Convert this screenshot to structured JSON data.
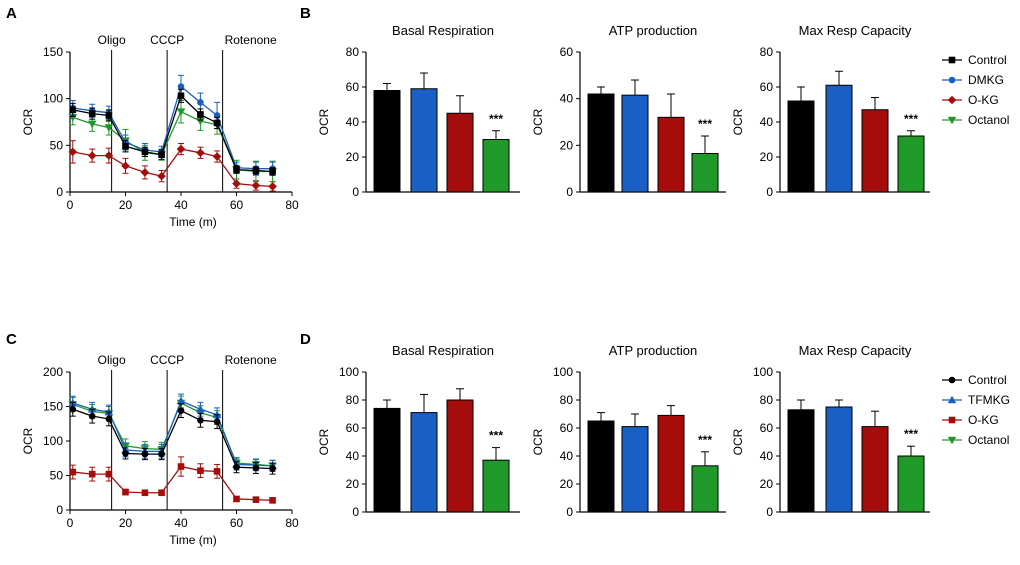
{
  "colors": {
    "Control": "#000000",
    "DMKG": "#1a5fc4",
    "TFMKG": "#1a5fc4",
    "O-KG": "#a50d0d",
    "Octanol": "#1f9a2a",
    "vline": "#000000"
  },
  "panel_labels": [
    "A",
    "B",
    "C",
    "D"
  ],
  "chart_data": [
    {
      "id": "A",
      "type": "line",
      "xlabel": "Time (m)",
      "ylabel": "OCR",
      "xlim": [
        0,
        80
      ],
      "ylim": [
        0,
        150
      ],
      "xticks": [
        0,
        20,
        40,
        60,
        80
      ],
      "yticks": [
        0,
        50,
        100,
        150
      ],
      "annotations": [
        {
          "text": "Oligo",
          "x": 15
        },
        {
          "text": "CCCP",
          "x": 35
        },
        {
          "text": "Rotenone",
          "x": 55
        }
      ],
      "x": [
        1,
        8,
        14,
        20,
        27,
        33,
        40,
        47,
        53,
        60,
        67,
        73
      ],
      "series": [
        {
          "name": "Control",
          "marker": "square",
          "values": [
            88,
            84,
            82,
            49,
            43,
            40,
            103,
            83,
            74,
            24,
            23,
            22
          ],
          "errors": [
            7,
            6,
            6,
            6,
            5,
            5,
            7,
            6,
            6,
            4,
            4,
            4
          ]
        },
        {
          "name": "DMKG",
          "marker": "circle",
          "values": [
            90,
            87,
            85,
            53,
            45,
            43,
            113,
            96,
            82,
            26,
            25,
            25
          ],
          "errors": [
            8,
            7,
            7,
            8,
            7,
            6,
            12,
            10,
            14,
            6,
            7,
            7
          ]
        },
        {
          "name": "O-KG",
          "marker": "diamond",
          "values": [
            43,
            39,
            39,
            28,
            21,
            17,
            46,
            42,
            38,
            9,
            7,
            6
          ],
          "errors": [
            12,
            7,
            8,
            8,
            7,
            6,
            6,
            6,
            6,
            5,
            5,
            5
          ]
        },
        {
          "name": "Octanol",
          "marker": "triangle-down",
          "values": [
            80,
            73,
            69,
            55,
            42,
            40,
            86,
            76,
            72,
            24,
            22,
            22
          ],
          "errors": [
            8,
            8,
            8,
            12,
            8,
            6,
            12,
            10,
            10,
            10,
            11,
            11
          ]
        }
      ]
    },
    {
      "id": "B1",
      "type": "bar",
      "title": "Basal Respiration",
      "ylabel": "OCR",
      "ylim": [
        0,
        80
      ],
      "yticks": [
        0,
        20,
        40,
        60,
        80
      ],
      "categories": [
        "Control",
        "DMKG",
        "O-KG",
        "Octanol"
      ],
      "values": [
        58,
        59,
        45,
        30
      ],
      "errors": [
        4,
        9,
        10,
        5
      ],
      "significance": [
        "",
        "",
        "",
        "***"
      ]
    },
    {
      "id": "B2",
      "type": "bar",
      "title": "ATP production",
      "ylabel": "OCR",
      "ylim": [
        0,
        60
      ],
      "yticks": [
        0,
        20,
        40,
        60
      ],
      "categories": [
        "Control",
        "DMKG",
        "O-KG",
        "Octanol"
      ],
      "values": [
        42,
        41.5,
        32,
        16.5
      ],
      "errors": [
        3,
        6.5,
        10,
        7.5
      ],
      "significance": [
        "",
        "",
        "",
        "***"
      ]
    },
    {
      "id": "B3",
      "type": "bar",
      "title": "Max Resp Capacity",
      "ylabel": "OCR",
      "ylim": [
        0,
        80
      ],
      "yticks": [
        0,
        20,
        40,
        60,
        80
      ],
      "categories": [
        "Control",
        "DMKG",
        "O-KG",
        "Octanol"
      ],
      "values": [
        52,
        61,
        47,
        32
      ],
      "errors": [
        8,
        8,
        7,
        3
      ],
      "significance": [
        "",
        "",
        "",
        "***"
      ],
      "legend": [
        {
          "name": "Control",
          "marker": "square"
        },
        {
          "name": "DMKG",
          "marker": "circle"
        },
        {
          "name": "O-KG",
          "marker": "diamond"
        },
        {
          "name": "Octanol",
          "marker": "triangle-down"
        }
      ]
    },
    {
      "id": "C",
      "type": "line",
      "xlabel": "Time (m)",
      "ylabel": "OCR",
      "xlim": [
        0,
        80
      ],
      "ylim": [
        0,
        200
      ],
      "xticks": [
        0,
        20,
        40,
        60,
        80
      ],
      "yticks": [
        0,
        50,
        100,
        150,
        200
      ],
      "annotations": [
        {
          "text": "Oligo",
          "x": 15
        },
        {
          "text": "CCCP",
          "x": 35
        },
        {
          "text": "Rotenone",
          "x": 55
        }
      ],
      "x": [
        1,
        8,
        14,
        20,
        27,
        33,
        40,
        47,
        53,
        60,
        67,
        73
      ],
      "series": [
        {
          "name": "Control",
          "marker": "circle",
          "values": [
            146,
            136,
            132,
            82,
            81,
            81,
            144,
            130,
            128,
            62,
            61,
            60
          ],
          "errors": [
            10,
            10,
            10,
            8,
            8,
            8,
            10,
            10,
            10,
            8,
            8,
            8
          ]
        },
        {
          "name": "TFMKG",
          "marker": "triangle-up",
          "values": [
            155,
            146,
            142,
            87,
            85,
            85,
            158,
            146,
            138,
            66,
            65,
            64
          ],
          "errors": [
            10,
            10,
            10,
            10,
            10,
            10,
            10,
            10,
            10,
            8,
            8,
            8
          ]
        },
        {
          "name": "O-KG",
          "marker": "square",
          "values": [
            55,
            52,
            52,
            26,
            25,
            25,
            63,
            57,
            56,
            16,
            15,
            14
          ],
          "errors": [
            10,
            10,
            10,
            4,
            4,
            4,
            14,
            10,
            10,
            3,
            3,
            3
          ]
        },
        {
          "name": "Octanol",
          "marker": "triangle-down",
          "values": [
            153,
            143,
            140,
            93,
            89,
            88,
            155,
            141,
            134,
            68,
            66,
            64
          ],
          "errors": [
            10,
            10,
            10,
            10,
            10,
            10,
            10,
            10,
            10,
            8,
            8,
            8
          ]
        }
      ]
    },
    {
      "id": "D1",
      "type": "bar",
      "title": "Basal Respiration",
      "ylabel": "OCR",
      "ylim": [
        0,
        100
      ],
      "yticks": [
        0,
        20,
        40,
        60,
        80,
        100
      ],
      "categories": [
        "Control",
        "TFMKG",
        "O-KG",
        "Octanol"
      ],
      "values": [
        74,
        71,
        80,
        37
      ],
      "errors": [
        6,
        13,
        8,
        9
      ],
      "significance": [
        "",
        "",
        "",
        "***"
      ]
    },
    {
      "id": "D2",
      "type": "bar",
      "title": "ATP production",
      "ylabel": "OCR",
      "ylim": [
        0,
        100
      ],
      "yticks": [
        0,
        20,
        40,
        60,
        80,
        100
      ],
      "categories": [
        "Control",
        "TFMKG",
        "O-KG",
        "Octanol"
      ],
      "values": [
        65,
        61,
        69,
        33
      ],
      "errors": [
        6,
        9,
        7,
        10
      ],
      "significance": [
        "",
        "",
        "",
        "***"
      ]
    },
    {
      "id": "D3",
      "type": "bar",
      "title": "Max Resp Capacity",
      "ylabel": "OCR",
      "ylim": [
        0,
        100
      ],
      "yticks": [
        0,
        20,
        40,
        60,
        80,
        100
      ],
      "categories": [
        "Control",
        "TFMKG",
        "O-KG",
        "Octanol"
      ],
      "values": [
        73,
        75,
        61,
        40
      ],
      "errors": [
        7,
        5,
        11,
        7
      ],
      "significance": [
        "",
        "",
        "",
        "***"
      ],
      "legend": [
        {
          "name": "Control",
          "marker": "circle"
        },
        {
          "name": "TFMKG",
          "marker": "triangle-up"
        },
        {
          "name": "O-KG",
          "marker": "square"
        },
        {
          "name": "Octanol",
          "marker": "triangle-down"
        }
      ]
    }
  ]
}
